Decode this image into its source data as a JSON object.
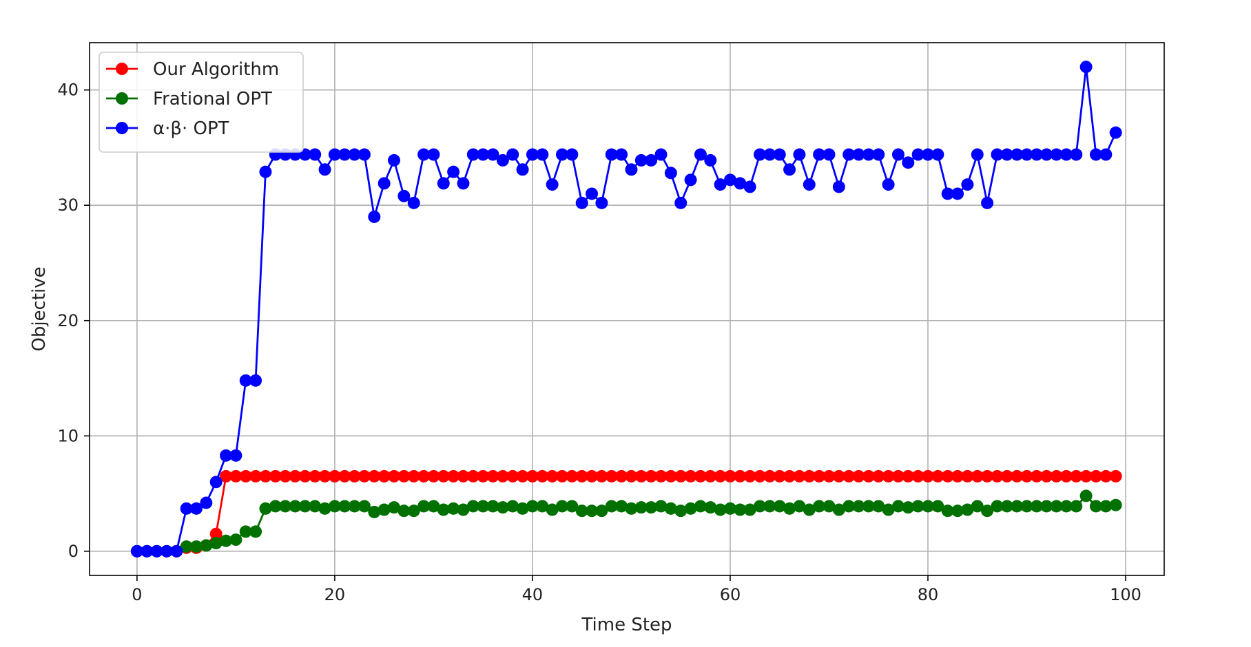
{
  "chart_data": {
    "type": "line",
    "xlabel": "Time Step",
    "ylabel": "Objective",
    "xlim": [
      -4.8,
      103.9
    ],
    "ylim": [
      -2.1,
      44.1
    ],
    "xticks": [
      0,
      20,
      40,
      60,
      80,
      100
    ],
    "yticks": [
      0,
      10,
      20,
      30,
      40
    ],
    "xtick_labels": [
      "0",
      "20",
      "40",
      "60",
      "80",
      "100"
    ],
    "ytick_labels": [
      "0",
      "10",
      "20",
      "30",
      "40"
    ],
    "grid": true,
    "legend_position": "top-left",
    "x": [
      0,
      1,
      2,
      3,
      4,
      5,
      6,
      7,
      8,
      9,
      10,
      11,
      12,
      13,
      14,
      15,
      16,
      17,
      18,
      19,
      20,
      21,
      22,
      23,
      24,
      25,
      26,
      27,
      28,
      29,
      30,
      31,
      32,
      33,
      34,
      35,
      36,
      37,
      38,
      39,
      40,
      41,
      42,
      43,
      44,
      45,
      46,
      47,
      48,
      49,
      50,
      51,
      52,
      53,
      54,
      55,
      56,
      57,
      58,
      59,
      60,
      61,
      62,
      63,
      64,
      65,
      66,
      67,
      68,
      69,
      70,
      71,
      72,
      73,
      74,
      75,
      76,
      77,
      78,
      79,
      80,
      81,
      82,
      83,
      84,
      85,
      86,
      87,
      88,
      89,
      90,
      91,
      92,
      93,
      94,
      95,
      96,
      97,
      98,
      99
    ],
    "series": [
      {
        "name": "Our Algorithm",
        "color": "#ff0000",
        "values": [
          0,
          0,
          0,
          0,
          0,
          0.3,
          0.3,
          0.5,
          1.5,
          6.5,
          6.5,
          6.5,
          6.5,
          6.5,
          6.5,
          6.5,
          6.5,
          6.5,
          6.5,
          6.5,
          6.5,
          6.5,
          6.5,
          6.5,
          6.5,
          6.5,
          6.5,
          6.5,
          6.5,
          6.5,
          6.5,
          6.5,
          6.5,
          6.5,
          6.5,
          6.5,
          6.5,
          6.5,
          6.5,
          6.5,
          6.5,
          6.5,
          6.5,
          6.5,
          6.5,
          6.5,
          6.5,
          6.5,
          6.5,
          6.5,
          6.5,
          6.5,
          6.5,
          6.5,
          6.5,
          6.5,
          6.5,
          6.5,
          6.5,
          6.5,
          6.5,
          6.5,
          6.5,
          6.5,
          6.5,
          6.5,
          6.5,
          6.5,
          6.5,
          6.5,
          6.5,
          6.5,
          6.5,
          6.5,
          6.5,
          6.5,
          6.5,
          6.5,
          6.5,
          6.5,
          6.5,
          6.5,
          6.5,
          6.5,
          6.5,
          6.5,
          6.5,
          6.5,
          6.5,
          6.5,
          6.5,
          6.5,
          6.5,
          6.5,
          6.5,
          6.5,
          6.5,
          6.5,
          6.5,
          6.5
        ]
      },
      {
        "name": "Frational OPT",
        "color": "#007000",
        "values": [
          0,
          0,
          0,
          0,
          0,
          0.4,
          0.4,
          0.5,
          0.7,
          0.9,
          1.0,
          1.7,
          1.7,
          3.7,
          3.9,
          3.9,
          3.9,
          3.9,
          3.9,
          3.7,
          3.9,
          3.9,
          3.9,
          3.9,
          3.4,
          3.6,
          3.8,
          3.5,
          3.5,
          3.9,
          3.9,
          3.6,
          3.7,
          3.6,
          3.9,
          3.9,
          3.9,
          3.8,
          3.9,
          3.7,
          3.9,
          3.9,
          3.6,
          3.9,
          3.9,
          3.5,
          3.5,
          3.5,
          3.9,
          3.9,
          3.7,
          3.8,
          3.8,
          3.9,
          3.7,
          3.5,
          3.7,
          3.9,
          3.8,
          3.6,
          3.7,
          3.6,
          3.6,
          3.9,
          3.9,
          3.9,
          3.7,
          3.9,
          3.6,
          3.9,
          3.9,
          3.6,
          3.9,
          3.9,
          3.9,
          3.9,
          3.6,
          3.9,
          3.8,
          3.9,
          3.9,
          3.9,
          3.5,
          3.5,
          3.6,
          3.9,
          3.5,
          3.9,
          3.9,
          3.9,
          3.9,
          3.9,
          3.9,
          3.9,
          3.9,
          3.9,
          4.8,
          3.9,
          3.9,
          4.0
        ]
      },
      {
        "name": "α·β· OPT",
        "color": "#0000ff",
        "values": [
          0,
          0,
          0,
          0,
          0,
          3.7,
          3.7,
          4.2,
          6.0,
          8.3,
          8.3,
          14.8,
          14.8,
          32.9,
          34.4,
          34.4,
          34.4,
          34.4,
          34.4,
          33.1,
          34.4,
          34.4,
          34.4,
          34.4,
          29.0,
          31.9,
          33.9,
          30.8,
          30.2,
          34.4,
          34.4,
          31.9,
          32.9,
          31.9,
          34.4,
          34.4,
          34.4,
          33.9,
          34.4,
          33.1,
          34.4,
          34.4,
          31.8,
          34.4,
          34.4,
          30.2,
          31.0,
          30.2,
          34.4,
          34.4,
          33.1,
          33.9,
          33.9,
          34.4,
          32.8,
          30.2,
          32.2,
          34.4,
          33.9,
          31.8,
          32.2,
          31.9,
          31.6,
          34.4,
          34.4,
          34.4,
          33.1,
          34.4,
          31.8,
          34.4,
          34.4,
          31.6,
          34.4,
          34.4,
          34.4,
          34.4,
          31.8,
          34.4,
          33.7,
          34.4,
          34.4,
          34.4,
          31.0,
          31.0,
          31.8,
          34.4,
          30.2,
          34.4,
          34.4,
          34.4,
          34.4,
          34.4,
          34.4,
          34.4,
          34.4,
          34.4,
          42.0,
          34.4,
          34.4,
          36.3
        ]
      }
    ]
  }
}
